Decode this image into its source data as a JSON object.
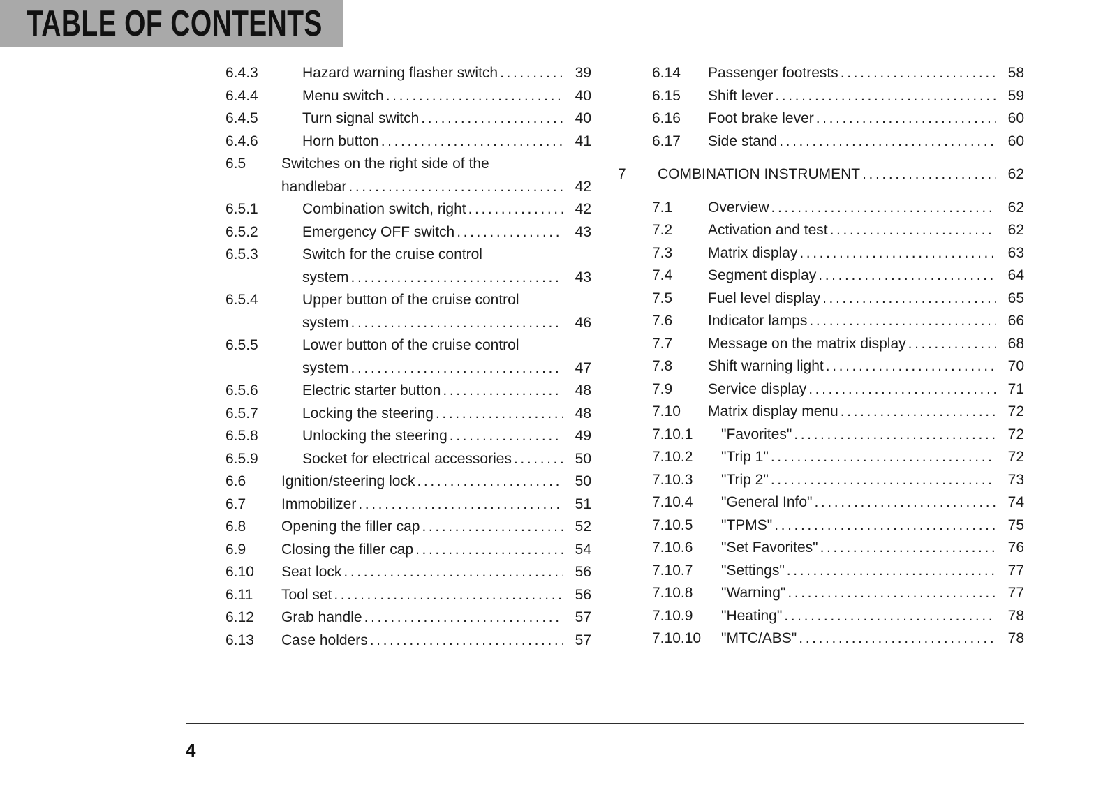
{
  "page": {
    "header": {
      "title": "TABLE OF CONTENTS"
    },
    "footer": {
      "page_number": "4"
    },
    "colors": {
      "header_bg": "#a9a9a9",
      "text": "#1c1c1c",
      "rule": "#2e2e2e"
    }
  },
  "toc": {
    "columns": [
      {
        "side": "left",
        "entries": [
          {
            "num": "6.4.3",
            "level": 3,
            "title_lines": [
              "Hazard warning flasher switch"
            ],
            "page": "39"
          },
          {
            "num": "6.4.4",
            "level": 3,
            "title_lines": [
              "Menu switch"
            ],
            "page": "40"
          },
          {
            "num": "6.4.5",
            "level": 3,
            "title_lines": [
              "Turn signal switch"
            ],
            "page": "40"
          },
          {
            "num": "6.4.6",
            "level": 3,
            "title_lines": [
              "Horn button"
            ],
            "page": "41"
          },
          {
            "num": "6.5",
            "level": 2,
            "title_lines": [
              "Switches on the right side of the",
              "handlebar"
            ],
            "page": "42"
          },
          {
            "num": "6.5.1",
            "level": 3,
            "title_lines": [
              "Combination switch, right"
            ],
            "page": "42"
          },
          {
            "num": "6.5.2",
            "level": 3,
            "title_lines": [
              "Emergency OFF switch"
            ],
            "page": "43"
          },
          {
            "num": "6.5.3",
            "level": 3,
            "title_lines": [
              "Switch for the cruise control",
              "system"
            ],
            "page": "43"
          },
          {
            "num": "6.5.4",
            "level": 3,
            "title_lines": [
              "Upper button of the cruise control",
              "system"
            ],
            "page": "46"
          },
          {
            "num": "6.5.5",
            "level": 3,
            "title_lines": [
              "Lower button of the cruise control",
              "system"
            ],
            "page": "47"
          },
          {
            "num": "6.5.6",
            "level": 3,
            "title_lines": [
              "Electric starter button"
            ],
            "page": "48"
          },
          {
            "num": "6.5.7",
            "level": 3,
            "title_lines": [
              "Locking the steering"
            ],
            "page": "48"
          },
          {
            "num": "6.5.8",
            "level": 3,
            "title_lines": [
              "Unlocking the steering"
            ],
            "page": "49"
          },
          {
            "num": "6.5.9",
            "level": 3,
            "title_lines": [
              "Socket for electrical accessories"
            ],
            "page": "50"
          },
          {
            "num": "6.6",
            "level": 2,
            "title_lines": [
              "Ignition/steering lock"
            ],
            "page": "50"
          },
          {
            "num": "6.7",
            "level": 2,
            "title_lines": [
              "Immobilizer"
            ],
            "page": "51"
          },
          {
            "num": "6.8",
            "level": 2,
            "title_lines": [
              "Opening the filler cap"
            ],
            "page": "52"
          },
          {
            "num": "6.9",
            "level": 2,
            "title_lines": [
              "Closing the filler cap"
            ],
            "page": "54"
          },
          {
            "num": "6.10",
            "level": 2,
            "title_lines": [
              "Seat lock"
            ],
            "page": "56"
          },
          {
            "num": "6.11",
            "level": 2,
            "title_lines": [
              "Tool set"
            ],
            "page": "56"
          },
          {
            "num": "6.12",
            "level": 2,
            "title_lines": [
              "Grab handle"
            ],
            "page": "57"
          },
          {
            "num": "6.13",
            "level": 2,
            "title_lines": [
              "Case holders"
            ],
            "page": "57"
          }
        ]
      },
      {
        "side": "right",
        "entries": [
          {
            "num": "6.14",
            "level": 2,
            "title_lines": [
              "Passenger footrests"
            ],
            "page": "58"
          },
          {
            "num": "6.15",
            "level": 2,
            "title_lines": [
              "Shift lever"
            ],
            "page": "59"
          },
          {
            "num": "6.16",
            "level": 2,
            "title_lines": [
              "Foot brake lever"
            ],
            "page": "60"
          },
          {
            "num": "6.17",
            "level": 2,
            "title_lines": [
              "Side stand"
            ],
            "page": "60"
          },
          {
            "num": "7",
            "level": 1,
            "title_lines": [
              "COMBINATION INSTRUMENT"
            ],
            "page": "62"
          },
          {
            "num": "7.1",
            "level": 2,
            "title_lines": [
              "Overview"
            ],
            "page": "62"
          },
          {
            "num": "7.2",
            "level": 2,
            "title_lines": [
              "Activation and test"
            ],
            "page": "62"
          },
          {
            "num": "7.3",
            "level": 2,
            "title_lines": [
              "Matrix display"
            ],
            "page": "63"
          },
          {
            "num": "7.4",
            "level": 2,
            "title_lines": [
              "Segment display"
            ],
            "page": "64"
          },
          {
            "num": "7.5",
            "level": 2,
            "title_lines": [
              "Fuel level display"
            ],
            "page": "65"
          },
          {
            "num": "7.6",
            "level": 2,
            "title_lines": [
              "Indicator lamps"
            ],
            "page": "66"
          },
          {
            "num": "7.7",
            "level": 2,
            "title_lines": [
              "Message on the matrix display"
            ],
            "page": "68"
          },
          {
            "num": "7.8",
            "level": 2,
            "title_lines": [
              "Shift warning light"
            ],
            "page": "70"
          },
          {
            "num": "7.9",
            "level": 2,
            "title_lines": [
              "Service display"
            ],
            "page": "71"
          },
          {
            "num": "7.10",
            "level": 2,
            "title_lines": [
              "Matrix display menu"
            ],
            "page": "72"
          },
          {
            "num": "7.10.1",
            "level": 3,
            "title_lines": [
              "\"Favorites\""
            ],
            "page": "72"
          },
          {
            "num": "7.10.2",
            "level": 3,
            "title_lines": [
              "\"Trip 1\""
            ],
            "page": "72"
          },
          {
            "num": "7.10.3",
            "level": 3,
            "title_lines": [
              "\"Trip 2\""
            ],
            "page": "73"
          },
          {
            "num": "7.10.4",
            "level": 3,
            "title_lines": [
              "\"General Info\""
            ],
            "page": "74"
          },
          {
            "num": "7.10.5",
            "level": 3,
            "title_lines": [
              "\"TPMS\""
            ],
            "page": "75"
          },
          {
            "num": "7.10.6",
            "level": 3,
            "title_lines": [
              "\"Set Favorites\""
            ],
            "page": "76"
          },
          {
            "num": "7.10.7",
            "level": 3,
            "title_lines": [
              "\"Settings\""
            ],
            "page": "77"
          },
          {
            "num": "7.10.8",
            "level": 3,
            "title_lines": [
              "\"Warning\""
            ],
            "page": "77"
          },
          {
            "num": "7.10.9",
            "level": 3,
            "title_lines": [
              "\"Heating\""
            ],
            "page": "78"
          },
          {
            "num": "7.10.10",
            "level": 3,
            "title_lines": [
              "\"MTC/ABS\""
            ],
            "page": "78"
          }
        ]
      }
    ]
  }
}
